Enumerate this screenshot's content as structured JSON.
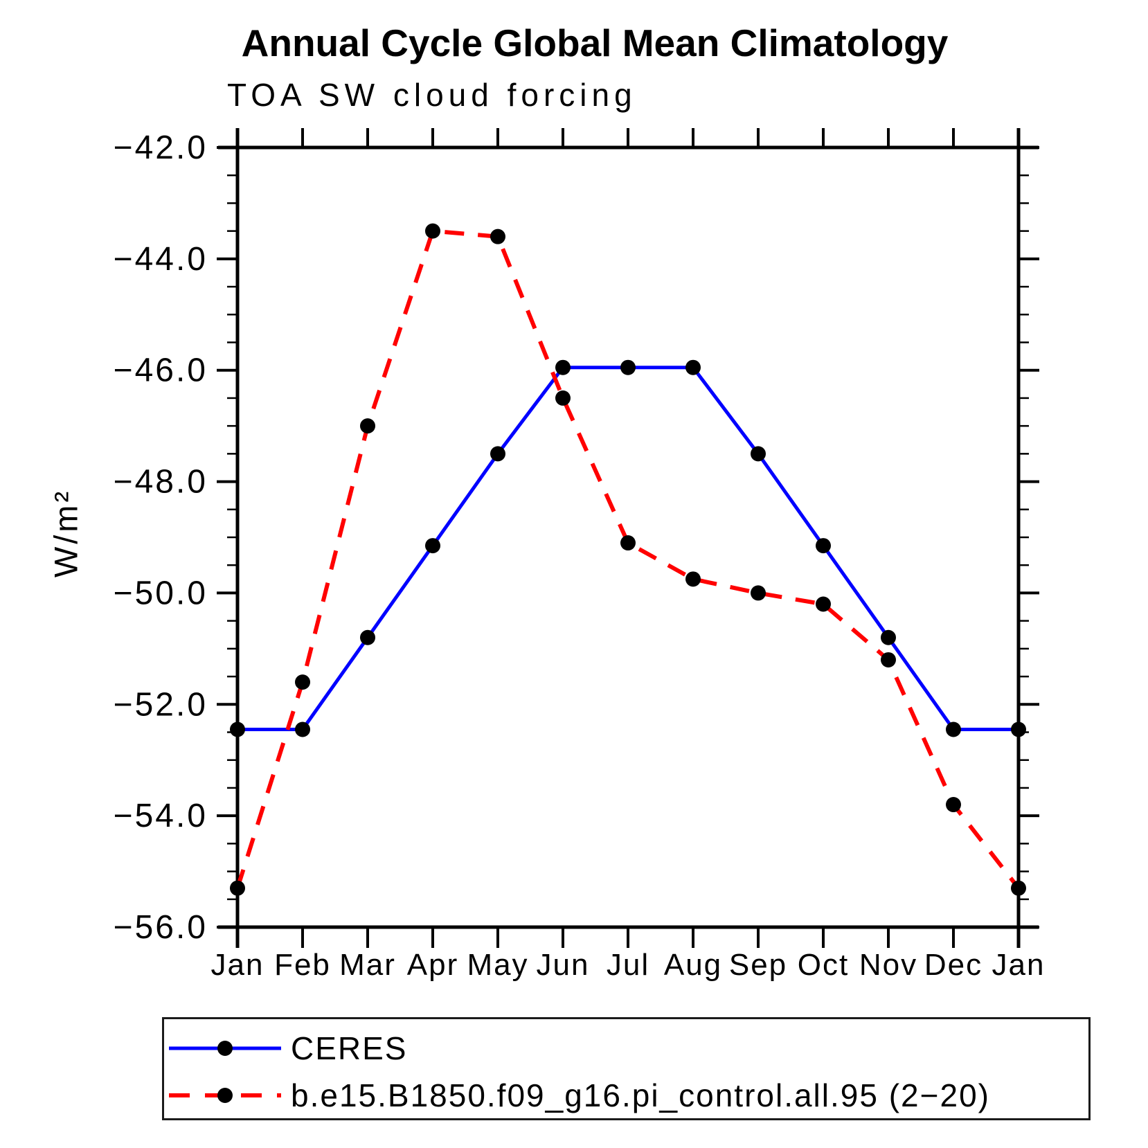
{
  "title": "Annual Cycle Global Mean Climatology",
  "subtitle": "TOA SW cloud forcing",
  "y_axis": {
    "label": "W/m²",
    "tick_labels": [
      "−42.0",
      "−44.0",
      "−46.0",
      "−48.0",
      "−50.0",
      "−52.0",
      "−54.0",
      "−56.0"
    ],
    "range_top": -42.0,
    "range_bottom": -56.0,
    "major_step": 2.0,
    "minor_step": 0.5
  },
  "chart_data": {
    "type": "line",
    "title": "Annual Cycle Global Mean Climatology",
    "subtitle": "TOA SW cloud forcing",
    "xlabel": "",
    "ylabel": "W/m²",
    "ylim": [
      -56.0,
      -42.0
    ],
    "grid": false,
    "legend_position": "bottom-left-box",
    "categories": [
      "Jan",
      "Feb",
      "Mar",
      "Apr",
      "May",
      "Jun",
      "Jul",
      "Aug",
      "Sep",
      "Oct",
      "Nov",
      "Dec",
      "Jan"
    ],
    "marker_color": "#000000",
    "series": [
      {
        "name": "CERES",
        "color": "#0000ff",
        "style": "solid",
        "marker": "filled-circle",
        "values": [
          -52.45,
          -52.45,
          -50.8,
          -49.15,
          -47.5,
          -45.95,
          -45.95,
          -45.95,
          -47.5,
          -49.15,
          -50.8,
          -52.45,
          -52.45
        ]
      },
      {
        "name": "b.e15.B1850.f09_g16.pi_control.all.95 (2−20)",
        "color": "#ff0000",
        "style": "dashed",
        "marker": "filled-circle",
        "values": [
          -55.3,
          -51.6,
          -47.0,
          -43.5,
          -43.6,
          -46.5,
          -49.1,
          -49.75,
          -50.0,
          -50.2,
          -51.2,
          -53.8,
          -55.3
        ]
      }
    ]
  }
}
